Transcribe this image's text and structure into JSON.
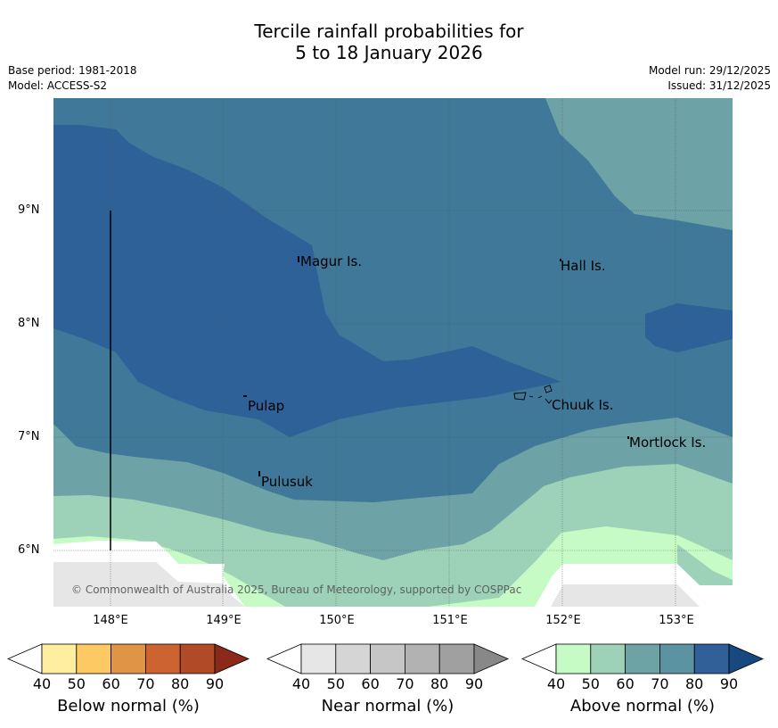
{
  "title": {
    "line1": "Tercile rainfall probabilities for",
    "line2": "5 to 18 January 2026"
  },
  "meta": {
    "base_period": "Base period: 1981-2018",
    "model": "Model: ACCESS-S2",
    "model_run": "Model run: 29/12/2025",
    "issued": "Issued: 31/12/2025"
  },
  "map": {
    "copyright": "© Commonwealth of Australia 2025, Bureau of Meteorology, supported by COSPPac",
    "places": [
      "Magur Is.",
      "Hall Is.",
      "Pulap",
      "Chuuk Is.",
      "Mortlock Is.",
      "Pulusuk"
    ],
    "lat_labels": [
      "9°N",
      "8°N",
      "7°N",
      "6°N"
    ],
    "lon_labels": [
      "148°E",
      "149°E",
      "150°E",
      "151°E",
      "152°E",
      "153°E"
    ]
  },
  "colorbars": [
    {
      "title": "Below normal (%)",
      "ticks": [
        "40",
        "50",
        "60",
        "70",
        "80",
        "90"
      ],
      "colors": [
        "#fdeea0",
        "#fdc962",
        "#e09446",
        "#cd6331",
        "#b04a27",
        "#8c2a19"
      ]
    },
    {
      "title": "Near normal (%)",
      "ticks": [
        "40",
        "50",
        "60",
        "70",
        "80",
        "90"
      ],
      "colors": [
        "#e6e6e6",
        "#d5d5d5",
        "#c6c6c6",
        "#b2b2b2",
        "#a0a0a0",
        "#888888"
      ]
    },
    {
      "title": "Above normal (%)",
      "ticks": [
        "40",
        "50",
        "60",
        "70",
        "80",
        "90"
      ],
      "colors": [
        "#c6fbc6",
        "#9ed2b8",
        "#6ea3a5",
        "#5b93a3",
        "#315f97",
        "#17487f"
      ]
    }
  ]
}
